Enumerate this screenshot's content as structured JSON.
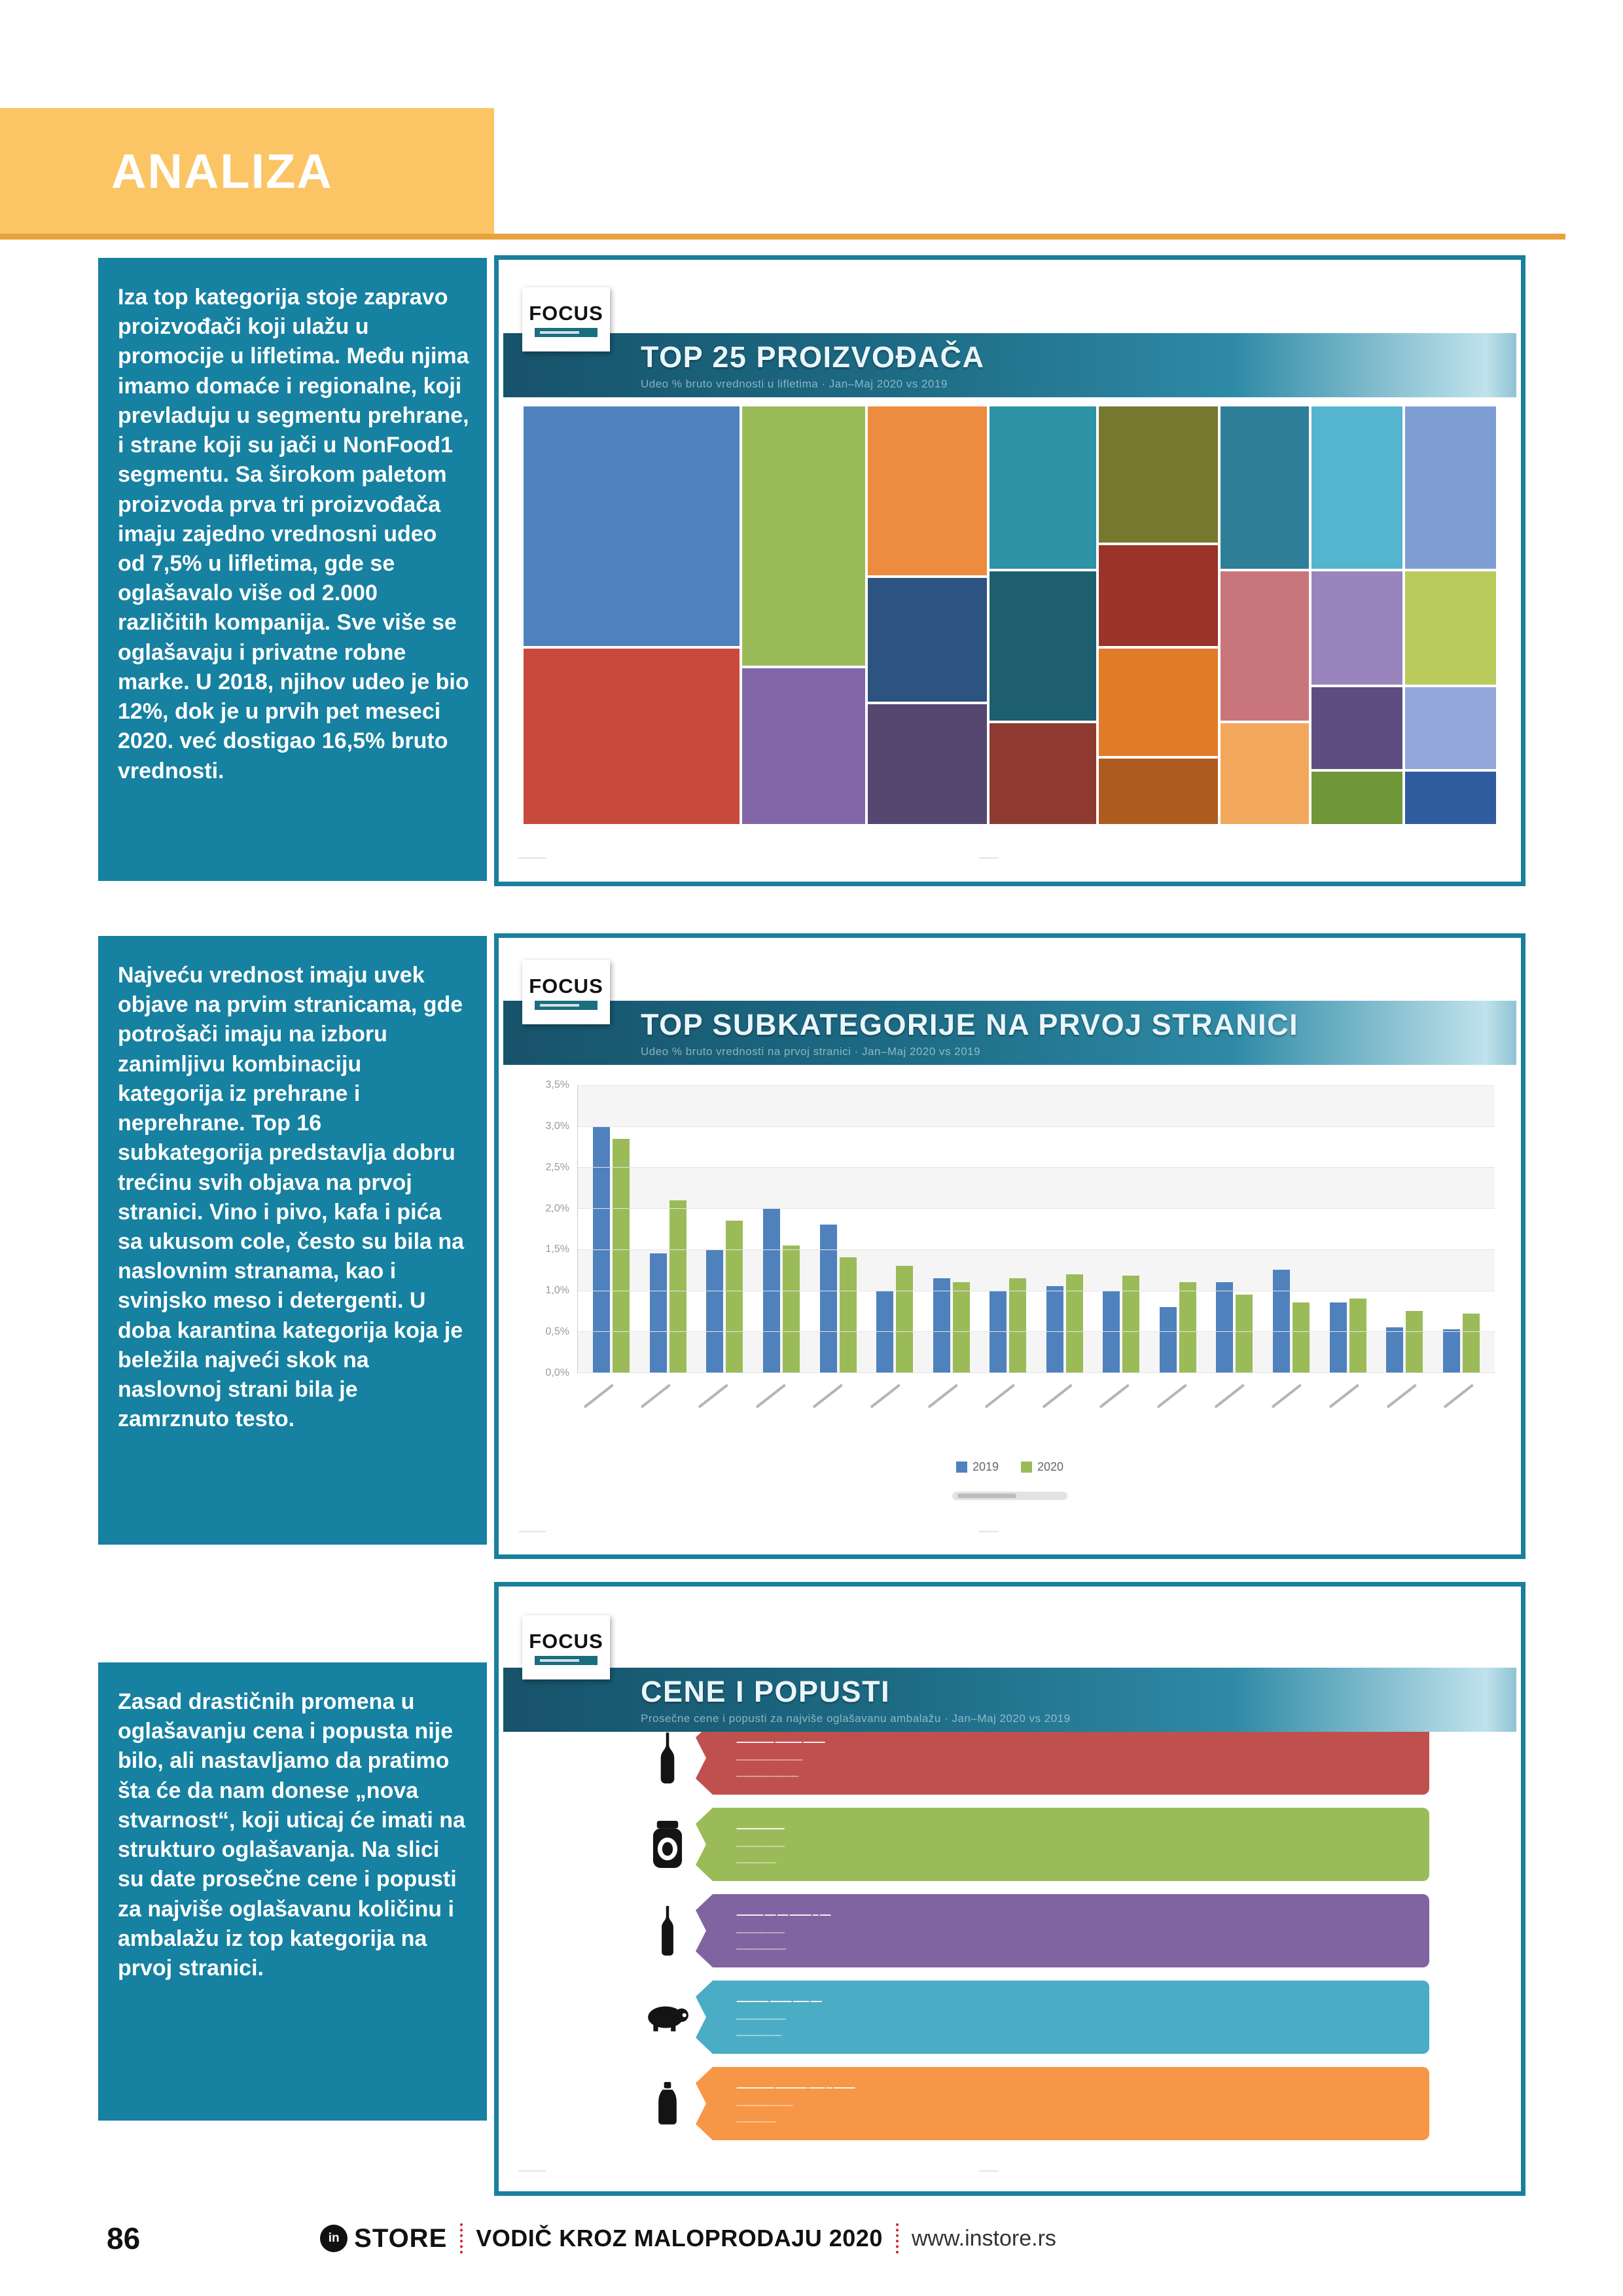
{
  "theme": {
    "teal_box": "#1681A1",
    "panel_border": "#1A7F9D",
    "header_yellow": "#FBC566",
    "header_underline": "#E8A23C",
    "banner_gradient_dark": "#17536B",
    "banner_gradient_light": "#BFE2EC"
  },
  "header": {
    "title": "ANALIZA"
  },
  "sections": [
    {
      "text": "Iza top kategorija stoje zapravo proizvođači koji ulažu u promocije u lifletima. Među njima imamo domaće i regionalne, koji prevladuju u segmentu prehrane, i strane koji su jači u NonFood1 segmentu. Sa širokom paletom proizvoda prva tri proizvođača imaju zajedno vrednosni udeo od 7,5% u lifletima, gde se oglašavalo više od 2.000 različitih kompanija. Sve više se oglašavaju i privatne robne marke. U 2018, njihov udeo je bio 12%, dok je u prvih pet meseci 2020. već dostigao 16,5% bruto vrednosti."
    },
    {
      "text": "Najveću vrednost imaju uvek objave na prvim stranicama, gde potrošači imaju na izboru zanimljivu kombinaciju kategorija iz prehrane i neprehrane. Top 16 subkategorija predstavlja dobru trećinu svih objava na prvoj stranici. Vino i pivo, kafa i pića sa ukusom cole, često su bila na naslovnim stranama, kao i svinjsko meso i detergenti. U doba karantina kategorija koja je beležila najveći skok na naslovnoj strani bila je zamrznuto testo."
    },
    {
      "text": "Zasad drastičnih promena u oglašavanju cena i popusta nije bilo, ali nastavljamo da pratimo šta će da nam donese „nova stvarnost“, koji uticaj će imati na strukturo oglašavanja. Na slici su date prosečne cene i popusti za najviše oglašavanu količinu i ambalažu iz top kategorija na prvoj stranici."
    }
  ],
  "chart1": {
    "logo": "FOCUS",
    "title": "TOP 25 PROIZVOĐAČA",
    "subtitle": "Udeo % bruto vrednosti u lifletima · Jan–Maj 2020 vs 2019",
    "footer_left": "–––– ––",
    "footer_center": "––– –"
  },
  "chart2": {
    "logo": "FOCUS",
    "title": "TOP SUBKATEGORIJE NA PRVOJ STRANICI",
    "subtitle": "Udeo % bruto vrednosti na prvoj stranici · Jan–Maj 2020 vs 2019",
    "footer_left": "–––– ––",
    "footer_center": "––– –"
  },
  "chart3": {
    "logo": "FOCUS",
    "title": "CENE I POPUSTI",
    "subtitle": "Prosečne cene i popusti za najviše oglašavanu ambalažu · Jan–Maj 2020 vs 2019",
    "footer_left": "–––– ––",
    "footer_center": "––– –"
  },
  "footer": {
    "page_number": "86",
    "logo_circle_text": "in",
    "logo_store": "STORE",
    "guide_title": "VODIČ KROZ MALOPRODAJU 2020",
    "website": "www.instore.rs"
  },
  "chart_data": [
    {
      "type": "treemap",
      "title": "TOP 25 PROIZVOĐAČA",
      "note_top3_share_pct": 7.5,
      "blocks": [
        {
          "x": 0,
          "y": 0,
          "w": 22.4,
          "h": 57.7,
          "color": "#4F81BD",
          "label": ""
        },
        {
          "x": 0,
          "y": 57.7,
          "w": 22.4,
          "h": 42.3,
          "color": "#C84A3D",
          "label": ""
        },
        {
          "x": 22.4,
          "y": 0,
          "w": 12.9,
          "h": 62.3,
          "color": "#9BBB59",
          "label": ""
        },
        {
          "x": 22.4,
          "y": 62.3,
          "w": 12.9,
          "h": 37.7,
          "color": "#8167A8",
          "label": ""
        },
        {
          "x": 35.3,
          "y": 0,
          "w": 12.5,
          "h": 40.8,
          "color": "#ED8B3E",
          "label": ""
        },
        {
          "x": 35.3,
          "y": 40.8,
          "w": 12.5,
          "h": 30.0,
          "color": "#2D5480",
          "label": ""
        },
        {
          "x": 35.3,
          "y": 70.8,
          "w": 12.5,
          "h": 29.2,
          "color": "#55476F",
          "label": ""
        },
        {
          "x": 47.8,
          "y": 0,
          "w": 11.2,
          "h": 39.2,
          "color": "#2E93A7",
          "label": ""
        },
        {
          "x": 47.8,
          "y": 39.2,
          "w": 11.2,
          "h": 36.2,
          "color": "#1D5F6E",
          "label": ""
        },
        {
          "x": 47.8,
          "y": 75.4,
          "w": 11.2,
          "h": 24.6,
          "color": "#8E3A31",
          "label": ""
        },
        {
          "x": 59.0,
          "y": 0,
          "w": 12.5,
          "h": 33.0,
          "color": "#77782F",
          "label": ""
        },
        {
          "x": 59.0,
          "y": 33.0,
          "w": 12.5,
          "h": 24.6,
          "color": "#9A332A",
          "label": ""
        },
        {
          "x": 59.0,
          "y": 57.6,
          "w": 12.5,
          "h": 26.2,
          "color": "#E07B28",
          "label": ""
        },
        {
          "x": 59.0,
          "y": 83.8,
          "w": 12.5,
          "h": 16.2,
          "color": "#AE5B1F",
          "label": ""
        },
        {
          "x": 71.5,
          "y": 0,
          "w": 9.3,
          "h": 39.2,
          "color": "#2F7F99",
          "label": ""
        },
        {
          "x": 71.5,
          "y": 39.2,
          "w": 9.3,
          "h": 36.2,
          "color": "#C9757C",
          "label": ""
        },
        {
          "x": 71.5,
          "y": 75.4,
          "w": 9.3,
          "h": 24.6,
          "color": "#F2A85C",
          "label": ""
        },
        {
          "x": 80.8,
          "y": 0,
          "w": 9.6,
          "h": 39.2,
          "color": "#55B4CE",
          "label": ""
        },
        {
          "x": 80.8,
          "y": 39.2,
          "w": 9.6,
          "h": 27.7,
          "color": "#9A84BC",
          "label": ""
        },
        {
          "x": 80.8,
          "y": 66.9,
          "w": 9.6,
          "h": 20.0,
          "color": "#5D4D80",
          "label": ""
        },
        {
          "x": 80.8,
          "y": 86.9,
          "w": 9.6,
          "h": 13.1,
          "color": "#6F9639",
          "label": ""
        },
        {
          "x": 90.4,
          "y": 0,
          "w": 9.6,
          "h": 39.2,
          "color": "#7E9ED3",
          "label": ""
        },
        {
          "x": 90.4,
          "y": 39.2,
          "w": 9.6,
          "h": 27.7,
          "color": "#B9CB5D",
          "label": ""
        },
        {
          "x": 90.4,
          "y": 66.9,
          "w": 9.6,
          "h": 20.0,
          "color": "#93A7DB",
          "label": ""
        },
        {
          "x": 90.4,
          "y": 86.9,
          "w": 9.6,
          "h": 13.1,
          "color": "#2E5C9E",
          "label": ""
        }
      ]
    },
    {
      "type": "bar",
      "title": "TOP SUBKATEGORIJE NA PRVOJ STRANICI",
      "categories": [
        "",
        "",
        "",
        "",
        "",
        "",
        "",
        "",
        "",
        "",
        "",
        "",
        "",
        "",
        "",
        ""
      ],
      "series": [
        {
          "name": "2019",
          "color": "#4F81BD",
          "values": [
            3.0,
            1.45,
            1.5,
            2.0,
            1.8,
            1.0,
            1.15,
            1.0,
            1.05,
            1.0,
            0.8,
            1.1,
            1.25,
            0.85,
            0.55,
            0.53
          ]
        },
        {
          "name": "2020",
          "color": "#9BBB59",
          "values": [
            2.85,
            2.1,
            1.85,
            1.55,
            1.4,
            1.3,
            1.1,
            1.15,
            1.2,
            1.18,
            1.1,
            0.95,
            0.85,
            0.9,
            0.75,
            0.72
          ]
        }
      ],
      "ylim": [
        0,
        3.5
      ],
      "yticks": [
        "3,5%",
        "3,0%",
        "2,5%",
        "2,0%",
        "1,5%",
        "1,0%",
        "0,5%",
        "0,0%"
      ],
      "grid": true,
      "legend_position": "bottom"
    },
    {
      "type": "pennant-list",
      "title": "CENE I POPUSTI",
      "items": [
        {
          "icon": "wine-bottle-icon",
          "color": "#C0504D",
          "lines": [
            "––––––– ––––– ––––",
            "––––––––– –– ––––",
            "–––––––– –––– ––"
          ]
        },
        {
          "icon": "coffee-jar-icon",
          "color": "#9BBB59",
          "lines": [
            "–––––––––",
            "––––––– ––––",
            "––––––– ––"
          ]
        },
        {
          "icon": "beer-bottle-icon",
          "color": "#8064A2",
          "lines": [
            "––––– –– –– –––– – ––",
            "––––––– ––––",
            "––––– –––– ––"
          ]
        },
        {
          "icon": "pig-icon",
          "color": "#4BACC6",
          "lines": [
            "–––––– –––– ––– ––",
            "––––––– –– ––",
            "––––––– – ––"
          ]
        },
        {
          "icon": "detergent-icon",
          "color": "#F79646",
          "lines": [
            "––––––– –––––– ––– – ––––",
            "––––––––– ––––",
            "––––––– ––"
          ]
        }
      ]
    }
  ]
}
